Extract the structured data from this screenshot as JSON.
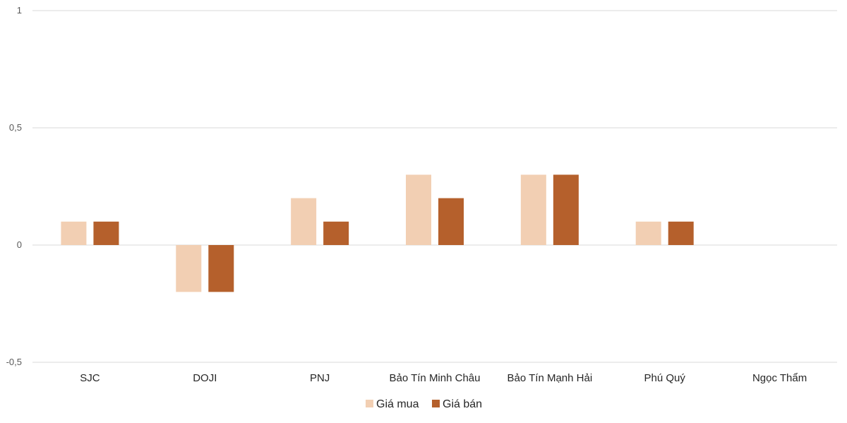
{
  "chart_data": {
    "type": "bar",
    "title": "",
    "xlabel": "",
    "ylabel": "",
    "categories": [
      "SJC",
      "DOJI",
      "PNJ",
      "Bảo Tín Minh Châu",
      "Bảo Tín Mạnh Hải",
      "Phú Quý",
      "Ngọc Thẩm"
    ],
    "series": [
      {
        "name": "Giá mua",
        "color": "#F2CFB3",
        "values": [
          0.1,
          -0.2,
          0.2,
          0.3,
          0.3,
          0.1,
          0
        ]
      },
      {
        "name": "Giá bán",
        "color": "#B5602C",
        "values": [
          0.1,
          -0.2,
          0.1,
          0.2,
          0.3,
          0.1,
          0
        ]
      }
    ],
    "ylim": [
      -0.5,
      1
    ],
    "yticks": [
      {
        "value": 1,
        "label": "1"
      },
      {
        "value": 0.5,
        "label": "0,5"
      },
      {
        "value": 0,
        "label": "0"
      },
      {
        "value": -0.5,
        "label": "-0,5"
      }
    ],
    "grid": true,
    "gridline_color": "#D9D9D9",
    "legend_position": "bottom"
  }
}
